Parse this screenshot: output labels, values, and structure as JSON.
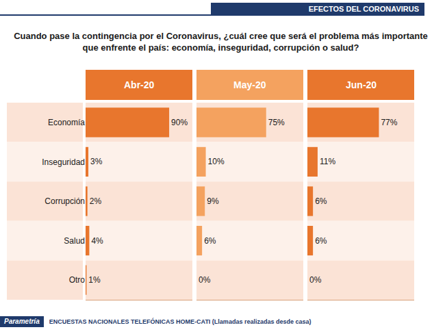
{
  "header": "EFECTOS DEL CORONAVIRUS",
  "footer": {
    "brand": "Parametría",
    "source": "ENCUESTAS NACIONALES TELEFÓNICAS HOME-CATI (Llamadas realizadas desde casa)"
  },
  "chart_data": {
    "type": "bar",
    "orientation": "horizontal",
    "title": "Cuando pase la contingencia por el Coronavirus, ¿cuál cree que será el problema más importante que enfrente el país: economía, inseguridad, corrupción o salud?",
    "categories": [
      "Economía",
      "Inseguridad",
      "Corrupción",
      "Salud",
      "Otro"
    ],
    "series": [
      {
        "name": "Abr-20",
        "color": "#E8762D",
        "values": [
          90,
          3,
          2,
          4,
          1
        ],
        "value_labels": [
          "90%",
          "3%",
          "2%",
          "4%",
          "1%"
        ]
      },
      {
        "name": "May-20",
        "color": "#F4A25F",
        "values": [
          75,
          10,
          9,
          6,
          0
        ],
        "value_labels": [
          "75%",
          "10%",
          "9%",
          "6%",
          "0%"
        ]
      },
      {
        "name": "Jun-20",
        "color": "#E8762D",
        "values": [
          77,
          11,
          6,
          6,
          0
        ],
        "value_labels": [
          "77%",
          "11%",
          "6%",
          "6%",
          "0%"
        ]
      }
    ],
    "xlim": [
      0,
      115
    ],
    "grid": false,
    "data_labels": true,
    "tick_labels": "y"
  }
}
